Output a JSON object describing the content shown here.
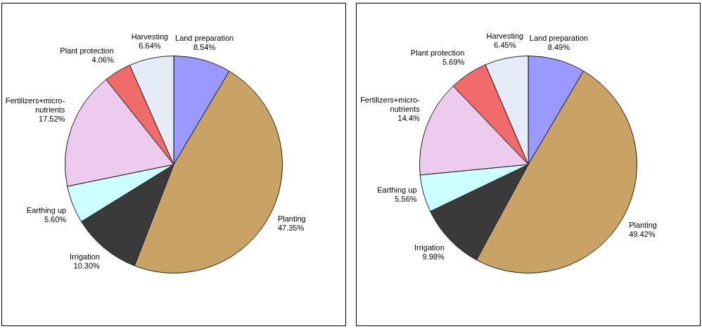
{
  "chart_data": [
    {
      "type": "pie",
      "categories": [
        "Land preparation",
        "Planting",
        "Irrigation",
        "Earthing up",
        "Fertilizers+micro-nutrients",
        "Plant protection",
        "Harvesting"
      ],
      "values": [
        8.54,
        47.35,
        10.3,
        5.6,
        17.52,
        4.06,
        6.64
      ],
      "value_labels": [
        "8.54%",
        "47.35%",
        "10.30%",
        "5.60%",
        "17.52%",
        "4.06%",
        "6.64%"
      ],
      "colors": [
        "#9999ff",
        "#c9a266",
        "#3a3a3a",
        "#ccffff",
        "#eccbee",
        "#f26b6b",
        "#e4eaf6"
      ],
      "data_labels": true
    },
    {
      "type": "pie",
      "categories": [
        "Land preparation",
        "Planting",
        "Irrigation",
        "Earthing up",
        "Fertilizers+micro-nutrients",
        "Plant protection",
        "Harvesting"
      ],
      "values": [
        8.49,
        49.42,
        9.98,
        5.56,
        14.4,
        5.69,
        6.45
      ],
      "value_labels": [
        "8.49%",
        "49.42%",
        "9.98%",
        "5.56%",
        "14.4%",
        "5.69%",
        "6.45%"
      ],
      "colors": [
        "#9999ff",
        "#c9a266",
        "#3a3a3a",
        "#ccffff",
        "#eccbee",
        "#f26b6b",
        "#e4eaf6"
      ],
      "data_labels": true
    }
  ]
}
